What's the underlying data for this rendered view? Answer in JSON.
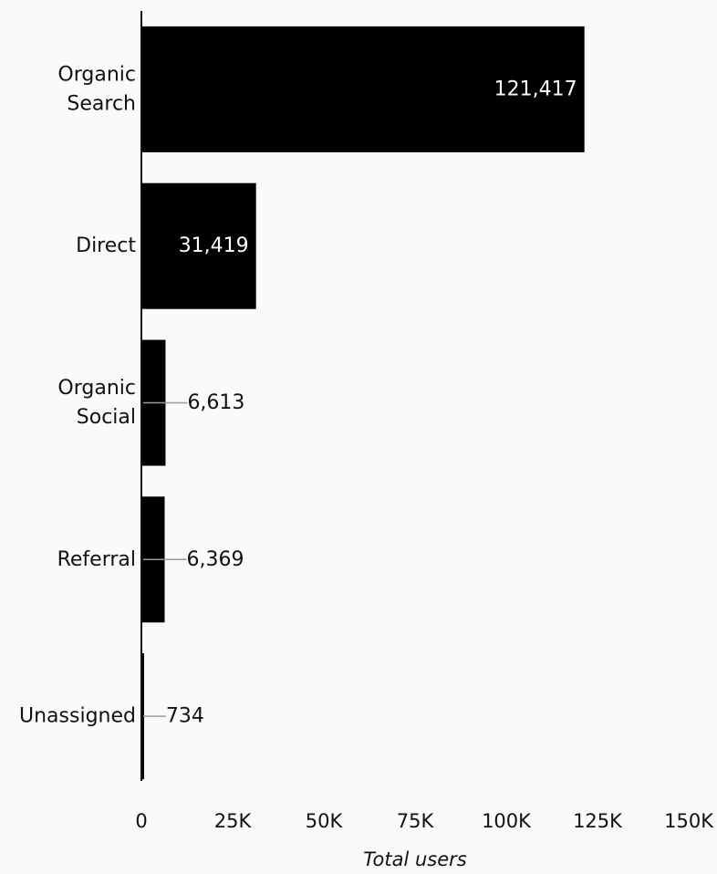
{
  "chart_data": {
    "type": "bar",
    "orientation": "horizontal",
    "categories": [
      [
        "Organic",
        "Search"
      ],
      [
        "Direct"
      ],
      [
        "Organic",
        "Social"
      ],
      [
        "Referral"
      ],
      [
        "Unassigned"
      ]
    ],
    "values": [
      121417,
      31419,
      6613,
      6369,
      734
    ],
    "value_labels": [
      "121,417",
      "31,419",
      "6,613",
      "6,369",
      "734"
    ],
    "xlim": [
      0,
      150000
    ],
    "x_ticks": [
      0,
      25000,
      50000,
      75000,
      100000,
      125000,
      150000
    ],
    "x_tick_labels": [
      "0",
      "25K",
      "50K",
      "75K",
      "100K",
      "125K",
      "150K"
    ],
    "xlabel": "Total users",
    "ylabel": "",
    "title": "",
    "grid": false,
    "legend": "none",
    "colors": {
      "bar": "#000000",
      "background": "#fafafa",
      "leader_line": "#999999",
      "text": "#111111",
      "label_inside": "#ffffff"
    }
  }
}
